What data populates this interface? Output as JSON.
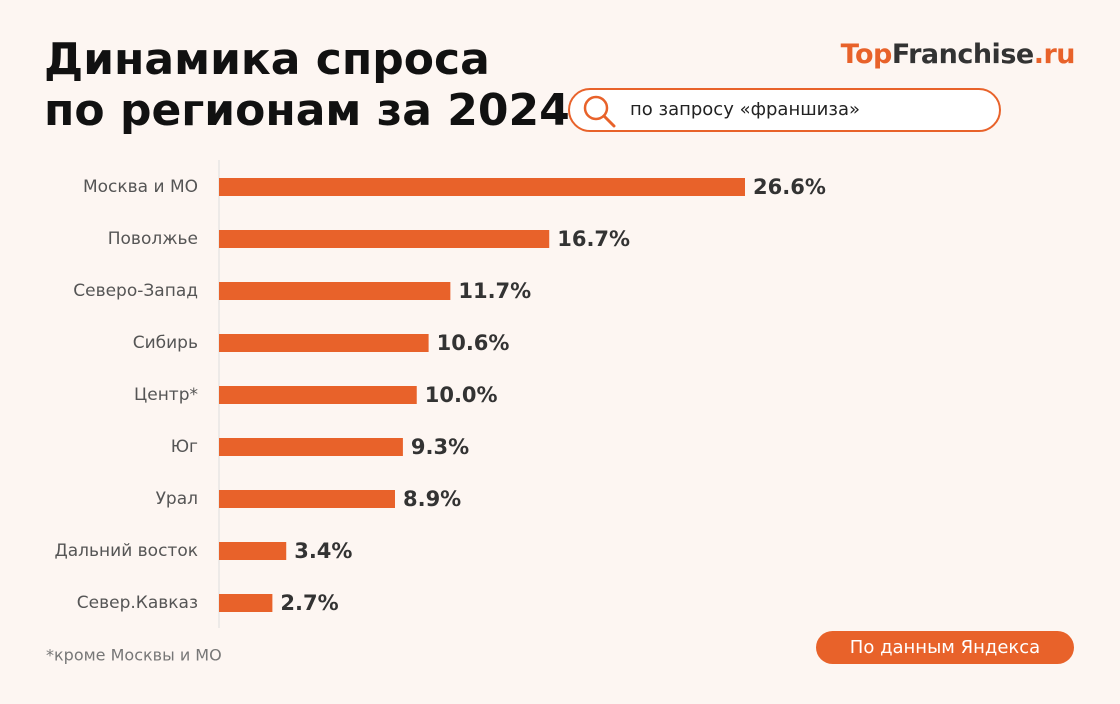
{
  "chart_data": {
    "type": "bar",
    "title": [
      "Динамика спроса",
      "по регионам за 2024"
    ],
    "logo": [
      "Top",
      "Franchise",
      ".ru"
    ],
    "query": "по запросу «франшиза»",
    "footnote": "*кроме Москвы и МО",
    "source": "По данным Яндекса",
    "categories": [
      "Москва и МО",
      "Поволжье",
      "Северо-Запад",
      "Сибирь",
      "Центр*",
      "Юг",
      "Урал",
      "Дальний восток",
      "Север.Кавказ"
    ],
    "values": [
      26.6,
      16.7,
      11.7,
      10.6,
      10.0,
      9.3,
      8.9,
      3.4,
      2.7
    ],
    "value_labels": [
      "26.6%",
      "16.7%",
      "11.7%",
      "10.6%",
      "10.0%",
      "9.3%",
      "8.9%",
      "3.4%",
      "2.7%"
    ],
    "color": "#e8622a"
  }
}
